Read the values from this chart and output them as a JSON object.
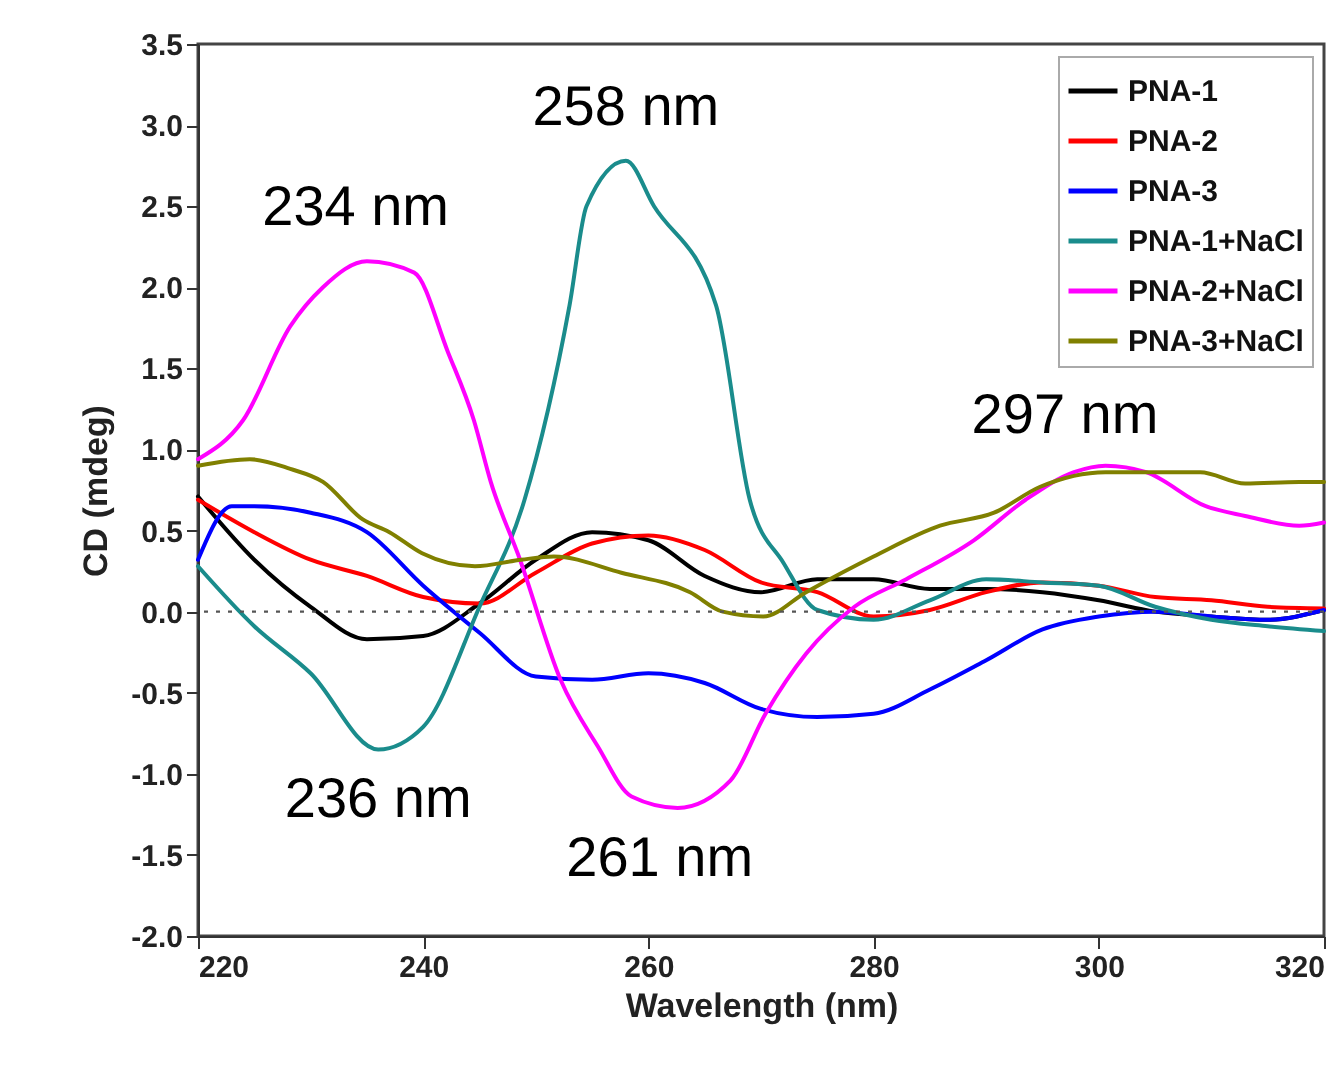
{
  "chart_data": {
    "type": "line",
    "xlabel": "Wavelength (nm)",
    "ylabel": "CD (mdeg)",
    "xlim": [
      220,
      320
    ],
    "xticks": [
      220,
      240,
      260,
      280,
      300,
      320
    ],
    "ylim": [
      -2.0,
      3.5
    ],
    "yticks": [
      {
        "value": -2,
        "label": "-2.0"
      },
      {
        "value": -1.5,
        "label": "-1.5"
      },
      {
        "value": -1,
        "label": "-1.0"
      },
      {
        "value": -0.5,
        "label": "-0.5"
      },
      {
        "value": 0,
        "label": "0.0"
      },
      {
        "value": 0.5,
        "label": "0.5"
      },
      {
        "value": 1,
        "label": "1.0"
      },
      {
        "value": 1.5,
        "label": "1.5"
      },
      {
        "value": 2,
        "label": "2.0"
      },
      {
        "value": 2.5,
        "label": "2.5"
      },
      {
        "value": 3,
        "label": "3.0"
      },
      {
        "value": 3.5,
        "label": "3.5"
      }
    ],
    "grid": false,
    "legend": "top right",
    "line_style": "solid",
    "marker": "none",
    "ref_lines": [
      {
        "axis": "y",
        "value": 0,
        "line_style": "dotted",
        "color": "#555555"
      }
    ],
    "annotations": [
      {
        "text": "234 nm",
        "x": 234,
        "y": 2.16
      },
      {
        "text": "258 nm",
        "x": 258,
        "y": 2.78
      },
      {
        "text": "236 nm",
        "x": 236,
        "y": -0.85
      },
      {
        "text": "261 nm",
        "x": 261,
        "y": -1.21
      },
      {
        "text": "297 nm",
        "x": 297,
        "y": 0.88
      }
    ],
    "series": [
      {
        "name": "PNA-1",
        "color": "#000000",
        "x": [
          220,
          225,
          230,
          235,
          240,
          245,
          250,
          255,
          260,
          265,
          270,
          275,
          280,
          285,
          290,
          295,
          300,
          305,
          310,
          315,
          320
        ],
        "values": [
          0.71,
          0.32,
          0.03,
          -0.17,
          -0.15,
          0.05,
          0.32,
          0.49,
          0.44,
          0.22,
          0.12,
          0.2,
          0.2,
          0.14,
          0.14,
          0.12,
          0.07,
          0,
          -0.03,
          -0.05,
          0.01
        ]
      },
      {
        "name": "PNA-2",
        "color": "#ff0000",
        "x": [
          220,
          225,
          230,
          235,
          240,
          245,
          250,
          255,
          260,
          265,
          270,
          275,
          280,
          285,
          290,
          295,
          300,
          305,
          310,
          315,
          320
        ],
        "values": [
          0.69,
          0.49,
          0.32,
          0.22,
          0.09,
          0.05,
          0.24,
          0.42,
          0.47,
          0.38,
          0.18,
          0.12,
          -0.03,
          0.01,
          0.12,
          0.18,
          0.16,
          0.09,
          0.07,
          0.03,
          0.02
        ]
      },
      {
        "name": "PNA-3",
        "color": "#0000ff",
        "x": [
          220,
          223,
          225,
          230,
          235,
          240,
          245,
          250,
          255,
          260,
          265,
          270,
          275,
          280,
          285,
          290,
          295,
          300,
          305,
          310,
          315,
          320
        ],
        "values": [
          0.32,
          0.65,
          0.65,
          0.61,
          0.49,
          0.16,
          -0.13,
          -0.4,
          -0.42,
          -0.38,
          -0.44,
          -0.6,
          -0.65,
          -0.63,
          -0.48,
          -0.3,
          -0.11,
          -0.03,
          0,
          -0.03,
          -0.05,
          0.01
        ]
      },
      {
        "name": "PNA-1+NaCl",
        "color": "#1a8c8c",
        "x": [
          220,
          225,
          230,
          236,
          240,
          245,
          249,
          253,
          254.5,
          258,
          260.5,
          266,
          269,
          272,
          275,
          280,
          285,
          290,
          295,
          300,
          305,
          310,
          315,
          320
        ],
        "values": [
          0.28,
          -0.09,
          -0.38,
          -0.85,
          -0.71,
          0.03,
          0.69,
          1.89,
          2.5,
          2.78,
          2.5,
          1.89,
          0.69,
          0.3,
          0.01,
          -0.05,
          0.07,
          0.2,
          0.18,
          0.16,
          0.03,
          -0.05,
          -0.09,
          -0.12
        ]
      },
      {
        "name": "PNA-2+NaCl",
        "color": "#ff00ff",
        "x": [
          220,
          224,
          228.2,
          231.1,
          235,
          239.2,
          242.2,
          244.5,
          246,
          248.6,
          252.2,
          255.5,
          258.5,
          262.6,
          267.3,
          270.4,
          274,
          278.3,
          282.9,
          288.9,
          293.5,
          297.8,
          300.6,
          304.2,
          309.5,
          313,
          317.8,
          320
        ],
        "values": [
          0.94,
          1.18,
          1.76,
          2.0,
          2.16,
          2.09,
          1.6,
          1.18,
          0.8,
          0.32,
          -0.42,
          -0.83,
          -1.14,
          -1.21,
          -1.04,
          -0.63,
          -0.26,
          0.03,
          0.2,
          0.44,
          0.69,
          0.86,
          0.9,
          0.86,
          0.65,
          0.59,
          0.53,
          0.55
        ]
      },
      {
        "name": "PNA-3+NaCl",
        "color": "#808000",
        "x": [
          220,
          224.6,
          228.2,
          231.1,
          234.6,
          237,
          239.9,
          244.6,
          248.7,
          251.6,
          257.6,
          263.7,
          266.6,
          270.2,
          274,
          280,
          285.9,
          290.7,
          294.8,
          300.6,
          304.9,
          309,
          313,
          317.8,
          320
        ],
        "values": [
          0.9,
          0.94,
          0.88,
          0.8,
          0.57,
          0.49,
          0.36,
          0.28,
          0.32,
          0.34,
          0.24,
          0.12,
          0,
          -0.03,
          0.12,
          0.34,
          0.53,
          0.61,
          0.77,
          0.86,
          0.86,
          0.86,
          0.79,
          0.8,
          0.8
        ]
      }
    ]
  }
}
